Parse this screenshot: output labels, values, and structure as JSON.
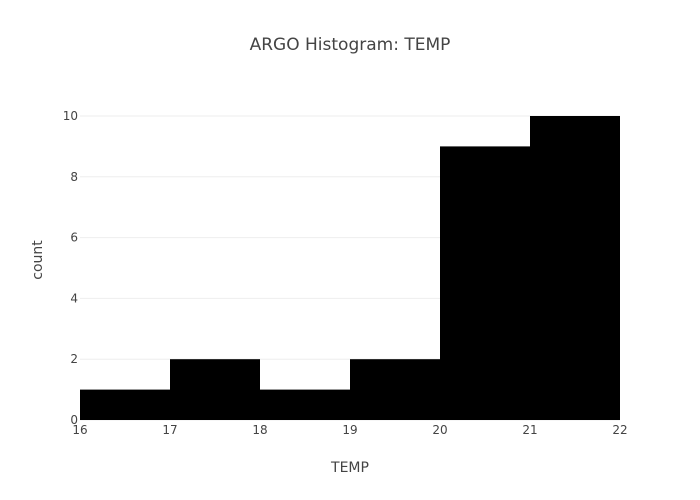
{
  "chart_data": {
    "type": "bar",
    "title": "ARGO Histogram: TEMP",
    "xlabel": "TEMP",
    "ylabel": "count",
    "bins": [
      {
        "start": 16,
        "end": 17,
        "count": 1
      },
      {
        "start": 17,
        "end": 18,
        "count": 2
      },
      {
        "start": 18,
        "end": 19,
        "count": 1
      },
      {
        "start": 19,
        "end": 20,
        "count": 2
      },
      {
        "start": 20,
        "end": 21,
        "count": 9
      },
      {
        "start": 21,
        "end": 22,
        "count": 10
      }
    ],
    "x_ticks": [
      "16",
      "17",
      "18",
      "19",
      "20",
      "21",
      "22"
    ],
    "y_ticks": [
      "0",
      "2",
      "4",
      "6",
      "8",
      "10"
    ],
    "xlim": [
      16,
      22
    ],
    "ylim": [
      0,
      10
    ],
    "grid": true,
    "bar_color": "#000000"
  }
}
